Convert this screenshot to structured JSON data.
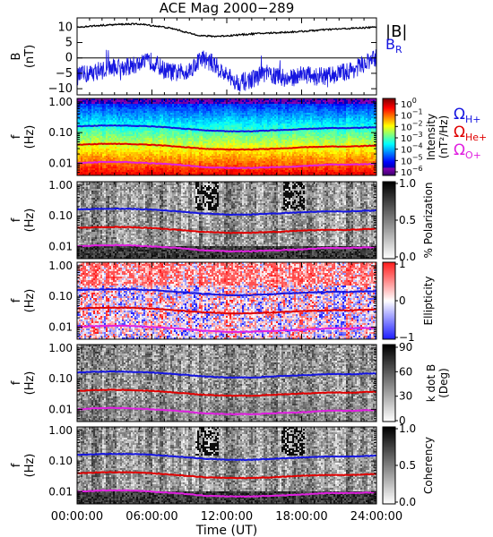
{
  "title": "ACE Mag 2000−289",
  "xlabel": "Time (UT)",
  "x_ticks": [
    "00:00:00",
    "06:00:00",
    "12:00:00",
    "18:00:00",
    "24:00:00"
  ],
  "colors": {
    "b_total": "#000000",
    "b_r": "#1515e0",
    "omega_h": "#1515e0",
    "omega_he": "#e00000",
    "omega_o": "#e020e0"
  },
  "legend": {
    "b_total": "|B|",
    "b_r": "B",
    "b_r_sub": "R",
    "omega": "Ω",
    "h_sub": "H+",
    "he_sub": "He+",
    "o_sub": "O+"
  },
  "panels": [
    {
      "id": "b-field",
      "ylabel_1": "B",
      "ylabel_2": "(nT)",
      "y_ticks": [
        "10",
        "5",
        "0",
        "−5",
        "−10"
      ]
    },
    {
      "id": "intensity",
      "ylabel_1": "f",
      "ylabel_2": "(Hz)",
      "y_ticks": [
        "1.00",
        "0.10",
        "0.01"
      ],
      "cb_label_1": "Intensity",
      "cb_label_2": "(nT²/Hz)",
      "cb_ticks": [
        {
          "base": "10",
          "exp": "0"
        },
        {
          "base": "10",
          "exp": "−1"
        },
        {
          "base": "10",
          "exp": "−2"
        },
        {
          "base": "10",
          "exp": "−3"
        },
        {
          "base": "10",
          "exp": "−4"
        },
        {
          "base": "10",
          "exp": "−5"
        },
        {
          "base": "10",
          "exp": "−6"
        }
      ]
    },
    {
      "id": "polarization",
      "ylabel_1": "f",
      "ylabel_2": "(Hz)",
      "y_ticks": [
        "1.00",
        "0.10",
        "0.01"
      ],
      "cb_label_1": "% Polarization",
      "cb_ticks": [
        "1.0",
        "0.5",
        "0.0"
      ]
    },
    {
      "id": "ellipticity",
      "ylabel_1": "f",
      "ylabel_2": "(Hz)",
      "y_ticks": [
        "1.00",
        "0.10",
        "0.01"
      ],
      "cb_label_1": "Ellipticity",
      "cb_ticks": [
        "1",
        "0",
        "−1"
      ]
    },
    {
      "id": "k-dot-b",
      "ylabel_1": "f",
      "ylabel_2": "(Hz)",
      "y_ticks": [
        "1.00",
        "0.10",
        "0.01"
      ],
      "cb_label_1": "k dot B",
      "cb_label_2": "(Deg)",
      "cb_ticks": [
        "90",
        "60",
        "30",
        "0"
      ]
    },
    {
      "id": "coherency",
      "ylabel_1": "f",
      "ylabel_2": "(Hz)",
      "y_ticks": [
        "1.00",
        "0.10",
        "0.01"
      ],
      "cb_label_1": "Coherency",
      "cb_ticks": [
        "1.0",
        "0.5",
        "0.0"
      ]
    }
  ],
  "chart_data": {
    "type": "heatmap",
    "title": "ACE Mag 2000−289",
    "xlabel": "Time (UT)",
    "x_unit": "hours UT",
    "xlim": [
      0,
      24
    ],
    "b_panel": {
      "ylabel": "B (nT)",
      "ylim": [
        -12,
        13
      ],
      "b_total_keypoints": {
        "x": [
          0,
          1,
          2,
          3,
          4,
          5,
          6,
          7,
          8,
          9,
          10,
          11,
          12,
          13,
          14,
          15,
          16,
          17,
          18,
          19,
          20,
          21,
          22,
          23,
          24
        ],
        "y": [
          10,
          10.3,
          10.6,
          10.8,
          11,
          11,
          10.5,
          10,
          9.2,
          8,
          7.2,
          7,
          7.2,
          7.5,
          7.8,
          8,
          8.2,
          8.4,
          8.6,
          8.9,
          9.2,
          9.4,
          9.6,
          9.8,
          10
        ]
      },
      "b_r_keypoints": {
        "x": [
          0,
          1,
          2,
          3,
          4,
          5,
          6,
          7,
          8,
          9,
          10,
          11,
          12,
          13,
          14,
          15,
          16,
          17,
          18,
          19,
          20,
          21,
          22,
          23,
          24
        ],
        "y": [
          -6,
          -5,
          -4,
          -3,
          -3,
          -2,
          -1,
          -4,
          -5,
          -4,
          0,
          -2,
          -6,
          -8,
          -7,
          -5,
          -6,
          -7,
          -5,
          -6,
          -6,
          -5,
          -4,
          -2,
          0
        ]
      }
    },
    "frequency_ylim_hz": [
      0.004,
      1.3
    ],
    "gyrofrequency_keypoints_hz": {
      "x": [
        0,
        2,
        4,
        6,
        8,
        10,
        12,
        14,
        16,
        18,
        20,
        22,
        24
      ],
      "omega_h_plus": [
        0.16,
        0.17,
        0.17,
        0.16,
        0.14,
        0.12,
        0.11,
        0.11,
        0.12,
        0.13,
        0.14,
        0.14,
        0.15
      ],
      "omega_he_plus": [
        0.04,
        0.043,
        0.043,
        0.04,
        0.035,
        0.03,
        0.028,
        0.028,
        0.03,
        0.033,
        0.035,
        0.035,
        0.038
      ],
      "omega_o_plus": [
        0.01,
        0.011,
        0.011,
        0.01,
        0.009,
        0.0075,
        0.007,
        0.007,
        0.0075,
        0.008,
        0.009,
        0.009,
        0.0095
      ]
    },
    "colorbars": {
      "intensity": {
        "label": "Intensity (nT²/Hz)",
        "scale": "log",
        "range": [
          1e-06,
          1
        ]
      },
      "polarization": {
        "label": "% Polarization",
        "range": [
          0,
          1
        ]
      },
      "ellipticity": {
        "label": "Ellipticity",
        "range": [
          -1,
          1
        ]
      },
      "k_dot_b": {
        "label": "k dot B (Deg)",
        "range": [
          0,
          90
        ]
      },
      "coherency": {
        "label": "Coherency",
        "range": [
          0,
          1
        ]
      }
    }
  }
}
